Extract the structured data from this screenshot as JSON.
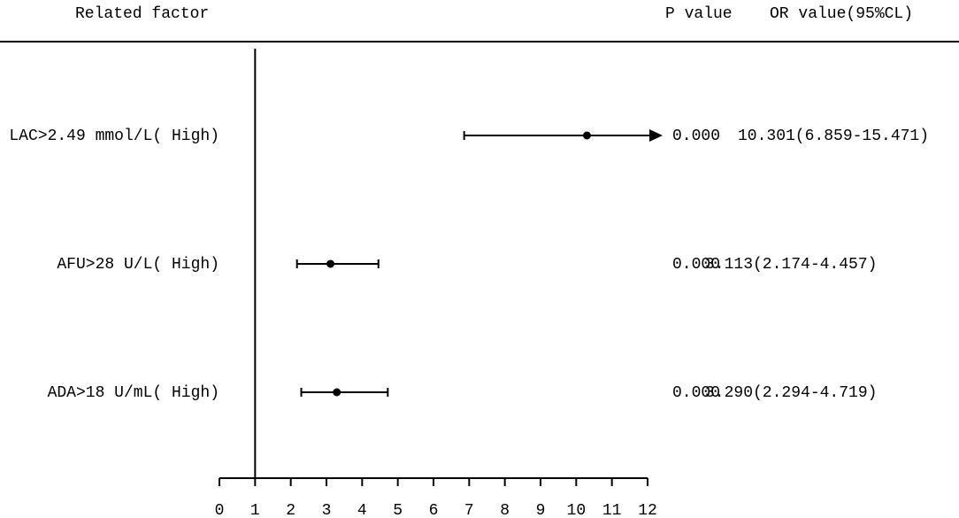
{
  "chart_data": {
    "type": "forest",
    "header": {
      "factor": "Related factor",
      "p": "P value",
      "or": "OR value(95%CL)"
    },
    "categories": [
      "LAC>2.49 mmol/L( High)",
      "AFU>28 U/L( High)",
      "ADA>18 U/mL( High)"
    ],
    "values": [
      10.301,
      3.113,
      3.29
    ],
    "lower": [
      6.859,
      2.174,
      2.294
    ],
    "upper": [
      15.471,
      4.457,
      4.719
    ],
    "p_values": [
      "0.000",
      "0.000",
      "0.000"
    ],
    "or_labels": [
      "10.301(6.859-15.471)",
      "3.113(2.174-4.457)",
      "3.290(2.294-4.719)"
    ],
    "reference": 1,
    "xlim": [
      0,
      12
    ],
    "xticks": [
      0,
      1,
      2,
      3,
      4,
      5,
      6,
      7,
      8,
      9,
      10,
      11,
      12
    ],
    "color": "#000000"
  }
}
